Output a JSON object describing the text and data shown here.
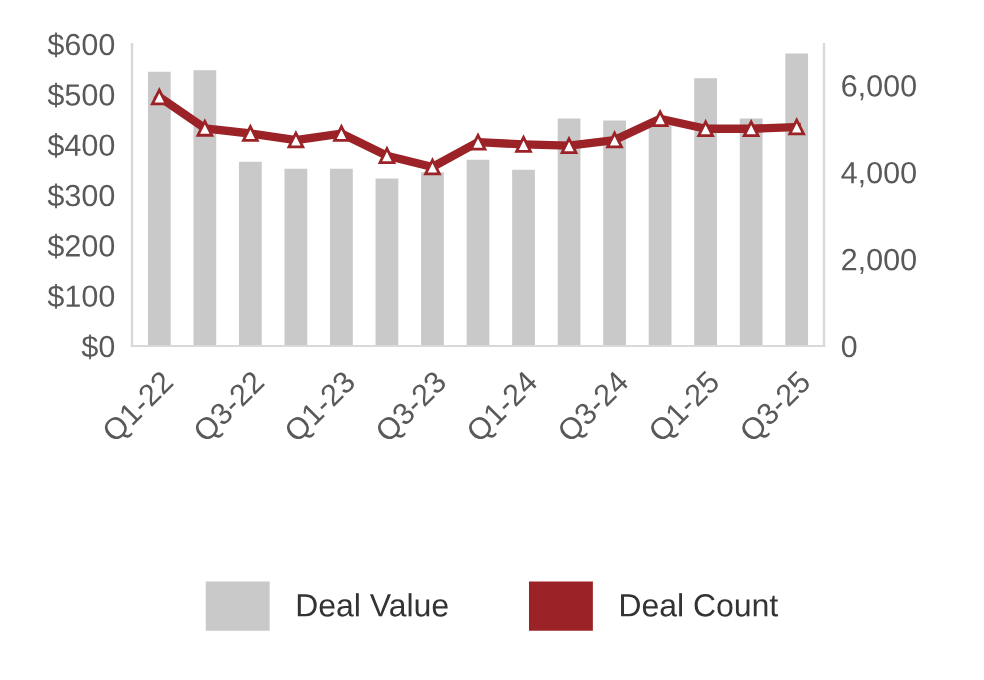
{
  "chart_data": {
    "type": "bar",
    "categories": [
      "Q1-22",
      null,
      "Q3-22",
      null,
      "Q1-23",
      null,
      "Q3-23",
      null,
      "Q1-24",
      null,
      "Q3-24",
      null,
      "Q1-25",
      null,
      "Q3-25"
    ],
    "series": [
      {
        "name": "Deal Value",
        "color": "#c9c9c9",
        "values": [
          545,
          548,
          366,
          352,
          352,
          333,
          345,
          370,
          350,
          452,
          448,
          445,
          532,
          452,
          581
        ]
      },
      {
        "name": "Deal Count",
        "type": "line",
        "axis": "y2",
        "color": "#9b2226",
        "marker": "triangle",
        "values": [
          5730,
          5010,
          4890,
          4740,
          4890,
          4380,
          4120,
          4690,
          4640,
          4610,
          4740,
          5230,
          5000,
          5000,
          5040
        ]
      }
    ],
    "ylim": [
      0,
      600
    ],
    "yticks": [
      {
        "value": 0,
        "label": "$0"
      },
      {
        "value": 100,
        "label": "$100"
      },
      {
        "value": 200,
        "label": "$200"
      },
      {
        "value": 300,
        "label": "$300"
      },
      {
        "value": 400,
        "label": "$400"
      },
      {
        "value": 500,
        "label": "$500"
      },
      {
        "value": 600,
        "label": "$600"
      }
    ],
    "y2lim": [
      0,
      6950
    ],
    "y2ticks": [
      0,
      {
        "value": 2000,
        "label": "2,000"
      },
      {
        "value": 4000,
        "label": "4,000"
      },
      {
        "value": 6000,
        "label": "6,000"
      }
    ],
    "grid": false,
    "legend": "bottom"
  }
}
